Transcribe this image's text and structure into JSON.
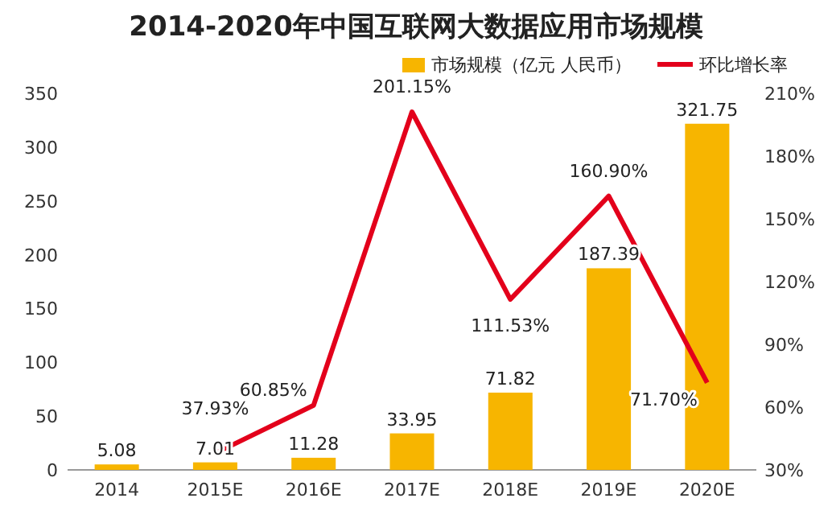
{
  "chart_data": {
    "type": "bar",
    "title": "2014-2020年中国互联网大数据应用市场规模",
    "categories": [
      "2014",
      "2015E",
      "2016E",
      "2017E",
      "2018E",
      "2019E",
      "2020E"
    ],
    "series": [
      {
        "name": "市场规模（亿元 人民币）",
        "color": "#f7b500",
        "values": [
          5.08,
          7.01,
          11.28,
          33.95,
          71.82,
          187.39,
          321.75
        ],
        "value_labels": [
          "5.08",
          "7.01",
          "11.28",
          "33.95",
          "71.82",
          "187.39",
          "321.75"
        ]
      },
      {
        "name": "环比增长率",
        "type": "line",
        "axis": "y2",
        "color": "#e3001b",
        "values": [
          null,
          37.93,
          60.85,
          201.15,
          111.53,
          160.9,
          71.7
        ],
        "value_labels": [
          null,
          "37.93%",
          "60.85%",
          "201.15%",
          "111.53%",
          "160.90%",
          "71.70%"
        ]
      }
    ],
    "ylim": [
      0,
      350
    ],
    "yticks": [
      0,
      50,
      100,
      150,
      200,
      250,
      300,
      350
    ],
    "y2lim": [
      30,
      210
    ],
    "y2ticks": [
      {
        "value": 30,
        "label": "30%"
      },
      {
        "value": 60,
        "label": "60%"
      },
      {
        "value": 90,
        "label": "90%"
      },
      {
        "value": 120,
        "label": "120%"
      },
      {
        "value": 150,
        "label": "150%"
      },
      {
        "value": 180,
        "label": "180%"
      },
      {
        "value": 210,
        "label": "210%"
      }
    ],
    "legend": "top right"
  }
}
